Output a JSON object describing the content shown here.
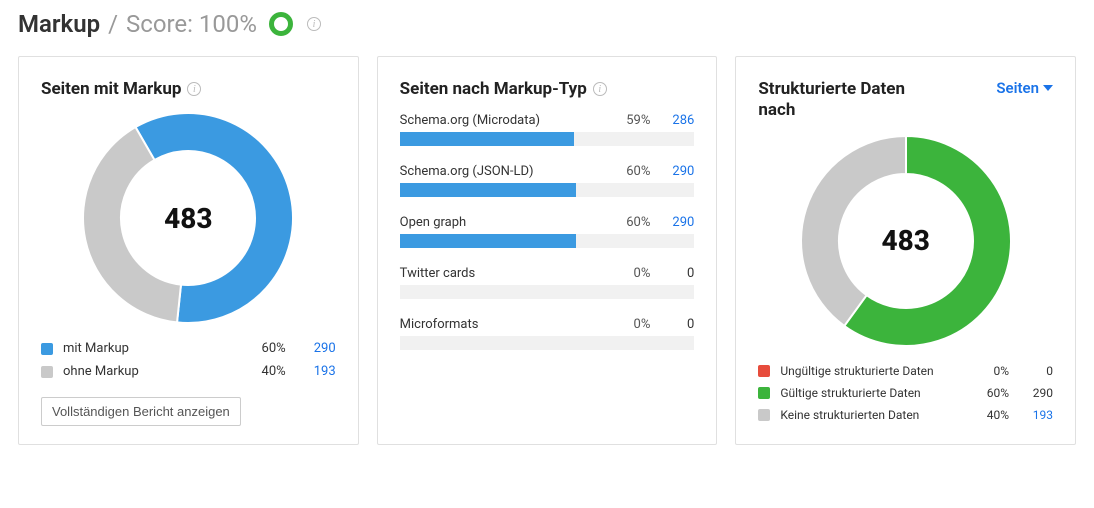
{
  "header": {
    "title": "Markup",
    "separator": "/",
    "score_label": "Score: 100%",
    "score_ring_color": "#3cb43c"
  },
  "colors": {
    "blue": "#3b9ae1",
    "grey": "#c9c9c9",
    "green": "#3cb43c",
    "red": "#e74c3c",
    "track": "#f1f1f1",
    "link": "#1a73e8"
  },
  "card1": {
    "title": "Seiten mit Markup",
    "center_value": "483",
    "donut": {
      "segments": [
        {
          "color": "#3b9ae1",
          "fraction": 0.6
        },
        {
          "color": "#c9c9c9",
          "fraction": 0.4
        }
      ],
      "start_angle_deg": -120,
      "thickness": 38,
      "size": 210
    },
    "legend": [
      {
        "swatch": "#3b9ae1",
        "label": "mit Markup",
        "pct": "60%",
        "val": "290",
        "link": true
      },
      {
        "swatch": "#c9c9c9",
        "label": "ohne Markup",
        "pct": "40%",
        "val": "193",
        "link": true
      }
    ],
    "button": "Vollständigen Bericht anzeigen"
  },
  "card2": {
    "title": "Seiten nach Markup-Typ",
    "bars": [
      {
        "label": "Schema.org (Microdata)",
        "pct": "59%",
        "val": "286",
        "fill": 59,
        "color": "#3b9ae1",
        "link": true
      },
      {
        "label": "Schema.org (JSON-LD)",
        "pct": "60%",
        "val": "290",
        "fill": 60,
        "color": "#3b9ae1",
        "link": true
      },
      {
        "label": "Open graph",
        "pct": "60%",
        "val": "290",
        "fill": 60,
        "color": "#3b9ae1",
        "link": true
      },
      {
        "label": "Twitter cards",
        "pct": "0%",
        "val": "0",
        "fill": 0,
        "color": "#3b9ae1",
        "link": false
      },
      {
        "label": "Microformats",
        "pct": "0%",
        "val": "0",
        "fill": 0,
        "color": "#3b9ae1",
        "link": false
      }
    ]
  },
  "card3": {
    "title": "Strukturierte Daten nach",
    "dropdown_label": "Seiten",
    "center_value": "483",
    "donut": {
      "segments": [
        {
          "color": "#3cb43c",
          "fraction": 0.6
        },
        {
          "color": "#c9c9c9",
          "fraction": 0.4
        }
      ],
      "start_angle_deg": -90,
      "thickness": 38,
      "size": 210
    },
    "legend": [
      {
        "swatch": "#e74c3c",
        "label": "Ungültige strukturierte Daten",
        "pct": "0%",
        "val": "0",
        "link": false
      },
      {
        "swatch": "#3cb43c",
        "label": "Gültige strukturierte Daten",
        "pct": "60%",
        "val": "290",
        "link": false
      },
      {
        "swatch": "#c9c9c9",
        "label": "Keine strukturierten Daten",
        "pct": "40%",
        "val": "193",
        "link": true
      }
    ]
  }
}
